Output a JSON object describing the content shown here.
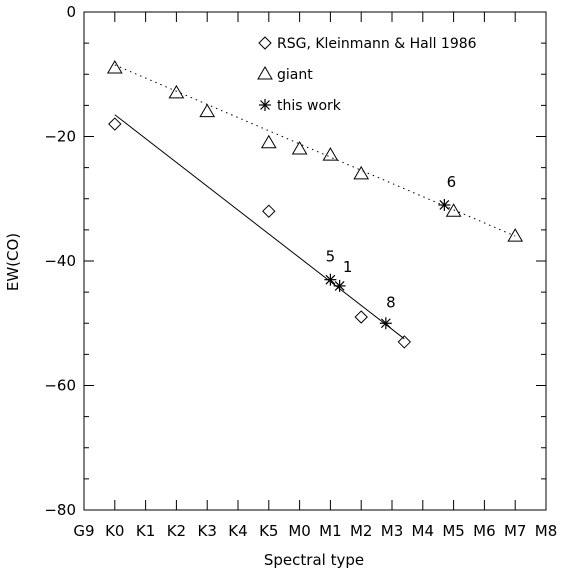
{
  "chart_data": {
    "type": "scatter",
    "xlabel": "Spectral type",
    "ylabel": "EW(CO)",
    "x_categories": [
      "G9",
      "K0",
      "K1",
      "K2",
      "K3",
      "K4",
      "K5",
      "M0",
      "M1",
      "M2",
      "M3",
      "M4",
      "M5",
      "M6",
      "M7",
      "M8"
    ],
    "xlim": [
      0,
      15
    ],
    "ylim": [
      -80,
      0
    ],
    "yticks": [
      0,
      -20,
      -40,
      -60,
      -80
    ],
    "grid": false,
    "legend_position": "top-right",
    "series": [
      {
        "name": "RSG, Kleinmann & Hall 1986",
        "marker": "diamond",
        "points": [
          {
            "x": "K0",
            "y": -18
          },
          {
            "x": "K5",
            "y": -32
          },
          {
            "x": "M2",
            "y": -49
          },
          {
            "x": "M3.4",
            "y": -53
          }
        ]
      },
      {
        "name": "giant",
        "marker": "triangle",
        "points": [
          {
            "x": "K0",
            "y": -9
          },
          {
            "x": "K2",
            "y": -13
          },
          {
            "x": "K3",
            "y": -16
          },
          {
            "x": "K5",
            "y": -21
          },
          {
            "x": "M0",
            "y": -22
          },
          {
            "x": "M1",
            "y": -23
          },
          {
            "x": "M2",
            "y": -26
          },
          {
            "x": "M5",
            "y": -32
          },
          {
            "x": "M7",
            "y": -36
          }
        ]
      },
      {
        "name": "this work",
        "marker": "asterisk",
        "points": [
          {
            "x": "M1",
            "y": -43,
            "label": "5"
          },
          {
            "x": "M1.3",
            "y": -44,
            "label": "1"
          },
          {
            "x": "M2.8",
            "y": -50,
            "label": "8"
          },
          {
            "x": "M4.7",
            "y": -31,
            "label": "6"
          }
        ]
      }
    ],
    "fits": [
      {
        "series": "RSG, Kleinmann & Hall 1986",
        "style": "solid",
        "from": {
          "x": "K0",
          "y": -16.5
        },
        "to": {
          "x": "M3.4",
          "y": -52.5
        }
      },
      {
        "series": "giant",
        "style": "dotted",
        "from": {
          "x": "K0",
          "y": -8.5
        },
        "to": {
          "x": "M7",
          "y": -36
        }
      }
    ]
  }
}
